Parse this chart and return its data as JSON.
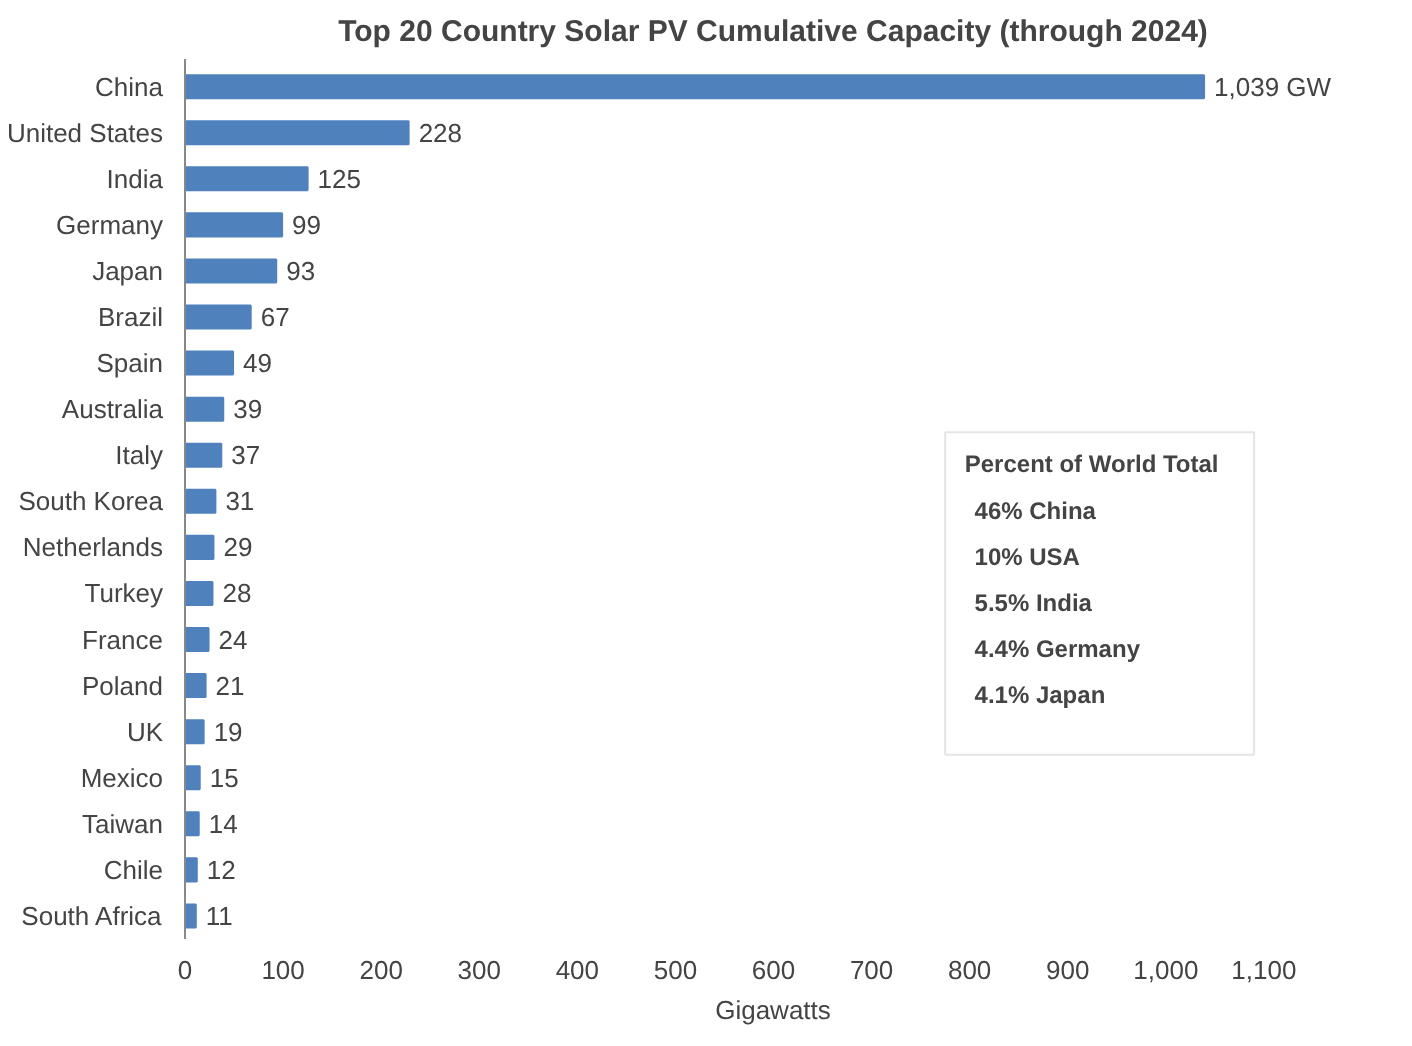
{
  "chart_data": {
    "type": "bar",
    "orientation": "horizontal",
    "title": "Top 20 Country Solar PV Cumulative Capacity (through 2024)",
    "xlabel": "Gigawatts",
    "categories": [
      "China",
      "United States",
      "India",
      "Germany",
      "Japan",
      "Brazil",
      "Spain",
      "Australia",
      "Italy",
      "South Korea",
      "Netherlands",
      "Turkey",
      "France",
      "Poland",
      "UK",
      "Mexico",
      "Taiwan",
      "Chile",
      "South Africa"
    ],
    "values": [
      1039,
      228,
      125,
      99,
      93,
      67,
      49,
      39,
      37,
      31,
      29,
      28,
      24,
      21,
      19,
      15,
      14,
      12,
      11
    ],
    "value_labels": [
      "1,039  GW",
      "228",
      "125",
      "99",
      "93",
      "67",
      "49",
      "39",
      "37",
      "31",
      "29",
      "28",
      "24",
      "21",
      "19",
      "15",
      "14",
      "12",
      "11"
    ],
    "color": "#4f81bd",
    "xlim": [
      0,
      1100
    ],
    "xticks": [
      0,
      100,
      200,
      300,
      400,
      500,
      600,
      700,
      800,
      900,
      {
        "value": 1000,
        "label": "1,000"
      },
      {
        "value": 1100,
        "label": "1,100"
      }
    ],
    "grid": false,
    "annotations": [
      "Percent of World Total",
      "46%  China",
      "10%  USA",
      "5.5%  India",
      "4.4%  Germany",
      "4.1%  Japan"
    ]
  }
}
